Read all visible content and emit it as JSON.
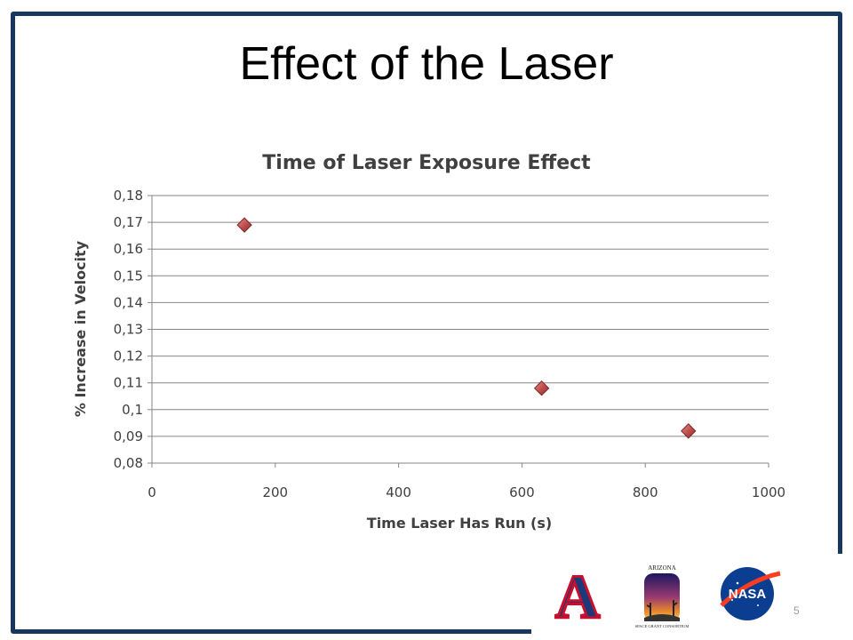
{
  "slide": {
    "title": "Effect of the Laser",
    "page_number": "5",
    "frame_color": "#17375e"
  },
  "logos": [
    {
      "name": "university-of-arizona-logo",
      "text": "A"
    },
    {
      "name": "arizona-space-grant-consortium-logo",
      "top_text": "ARIZONA",
      "bottom_text": "SPACE GRANT CONSORTIUM"
    },
    {
      "name": "nasa-logo",
      "text": "NASA"
    }
  ],
  "chart_data": {
    "type": "scatter",
    "title": "Time of Laser Exposure Effect",
    "xlabel": "Time Laser Has Run (s)",
    "ylabel": "% Increase in Velocity",
    "xlim": [
      0,
      1000
    ],
    "ylim": [
      0.08,
      0.18
    ],
    "x_ticks": [
      "0",
      "200",
      "400",
      "600",
      "800",
      "1000"
    ],
    "y_ticks": [
      "0,08",
      "0,09",
      "0,1",
      "0,11",
      "0,12",
      "0,13",
      "0,14",
      "0,15",
      "0,16",
      "0,17",
      "0,18"
    ],
    "grid": "horizontal",
    "legend": "none",
    "marker": "diamond",
    "marker_color": "#c0504d",
    "points": [
      {
        "x": 150,
        "y": 0.169
      },
      {
        "x": 632,
        "y": 0.108
      },
      {
        "x": 870,
        "y": 0.092
      }
    ]
  }
}
